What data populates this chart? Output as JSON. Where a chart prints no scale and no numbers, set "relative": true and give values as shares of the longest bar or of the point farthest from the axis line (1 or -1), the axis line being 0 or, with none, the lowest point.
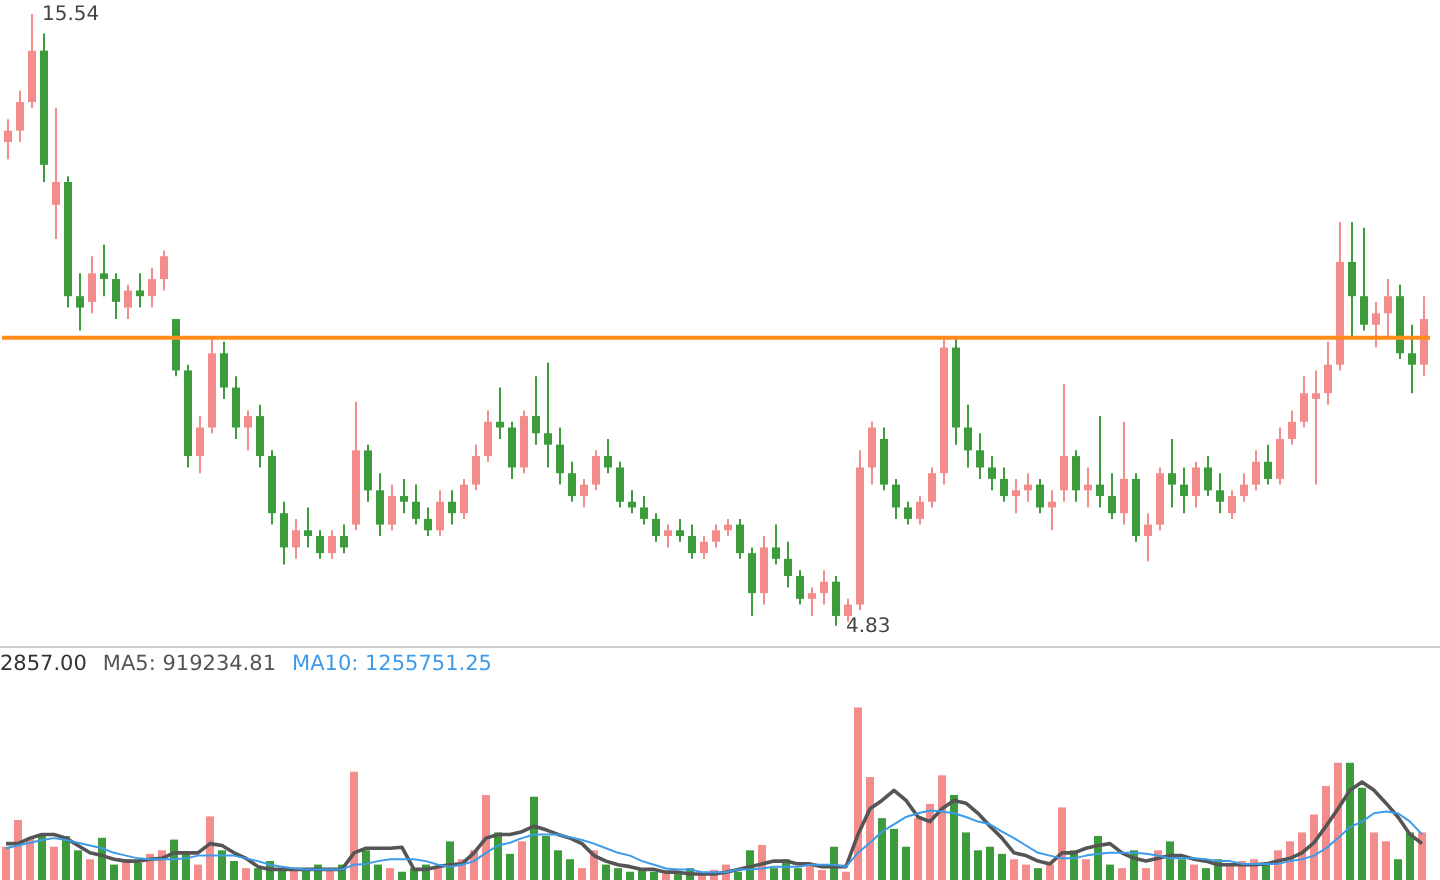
{
  "chart_data": [
    {
      "type": "candlestick",
      "categories": [
        null,
        null,
        null,
        null,
        null,
        null,
        null,
        null,
        null,
        null,
        null,
        null,
        null,
        null,
        null,
        null,
        null,
        null,
        null,
        null,
        null,
        null,
        null,
        null,
        null,
        null,
        null,
        null,
        null,
        null,
        null,
        null,
        null,
        null,
        null,
        null,
        null,
        null,
        null,
        null,
        null,
        null,
        null,
        null,
        null,
        null,
        null,
        null,
        null,
        null,
        null,
        null,
        null,
        null,
        null,
        null,
        null,
        null,
        null,
        null,
        null,
        null,
        null,
        null,
        null,
        null,
        null,
        null,
        null,
        null,
        null,
        null,
        null,
        null,
        null,
        null,
        null,
        null,
        null,
        null,
        null,
        null,
        null,
        null,
        null,
        null,
        null,
        null,
        null,
        null,
        null,
        null,
        null,
        null,
        null,
        null,
        null,
        null,
        null,
        null,
        null,
        null,
        null,
        null,
        null,
        null,
        null,
        null,
        null,
        null,
        null,
        null,
        null,
        null,
        null,
        null,
        null,
        null,
        null
      ],
      "ohlc": [
        [
          13.3,
          13.7,
          13.0,
          13.5
        ],
        [
          13.5,
          14.2,
          13.3,
          14.0
        ],
        [
          14.0,
          15.54,
          13.9,
          14.9
        ],
        [
          14.9,
          15.2,
          12.6,
          12.9
        ],
        [
          12.2,
          13.9,
          11.6,
          12.6
        ],
        [
          12.6,
          12.7,
          10.4,
          10.6
        ],
        [
          10.6,
          11.0,
          10.0,
          10.4
        ],
        [
          10.5,
          11.3,
          10.3,
          11.0
        ],
        [
          11.0,
          11.5,
          10.6,
          10.9
        ],
        [
          10.9,
          11.0,
          10.2,
          10.5
        ],
        [
          10.4,
          10.8,
          10.2,
          10.7
        ],
        [
          10.7,
          11.0,
          10.4,
          10.6
        ],
        [
          10.6,
          11.1,
          10.4,
          10.9
        ],
        [
          10.9,
          11.4,
          10.7,
          11.3
        ],
        [
          10.2,
          10.2,
          9.2,
          9.3
        ],
        [
          9.3,
          9.4,
          7.6,
          7.8
        ],
        [
          7.8,
          8.5,
          7.5,
          8.3
        ],
        [
          8.3,
          9.9,
          8.2,
          9.6
        ],
        [
          9.6,
          9.8,
          8.8,
          9.0
        ],
        [
          9.0,
          9.2,
          8.1,
          8.3
        ],
        [
          8.3,
          8.6,
          7.9,
          8.5
        ],
        [
          8.5,
          8.7,
          7.6,
          7.8
        ],
        [
          7.8,
          7.9,
          6.6,
          6.8
        ],
        [
          6.8,
          7.0,
          5.9,
          6.2
        ],
        [
          6.2,
          6.7,
          6.0,
          6.5
        ],
        [
          6.5,
          6.9,
          6.2,
          6.4
        ],
        [
          6.4,
          6.5,
          6.0,
          6.1
        ],
        [
          6.1,
          6.5,
          6.0,
          6.4
        ],
        [
          6.4,
          6.6,
          6.1,
          6.2
        ],
        [
          6.6,
          8.75,
          6.5,
          7.9
        ],
        [
          7.9,
          8.0,
          7.0,
          7.2
        ],
        [
          7.2,
          7.5,
          6.4,
          6.6
        ],
        [
          6.6,
          7.3,
          6.5,
          7.1
        ],
        [
          7.1,
          7.4,
          6.8,
          7.0
        ],
        [
          7.0,
          7.3,
          6.6,
          6.7
        ],
        [
          6.7,
          6.9,
          6.4,
          6.5
        ],
        [
          6.5,
          7.2,
          6.4,
          7.0
        ],
        [
          7.0,
          7.2,
          6.6,
          6.8
        ],
        [
          6.8,
          7.4,
          6.7,
          7.3
        ],
        [
          7.3,
          8.0,
          7.2,
          7.8
        ],
        [
          7.8,
          8.6,
          7.7,
          8.4
        ],
        [
          8.4,
          9.0,
          8.1,
          8.3
        ],
        [
          8.3,
          8.4,
          7.4,
          7.6
        ],
        [
          7.6,
          8.6,
          7.5,
          8.5
        ],
        [
          8.5,
          9.2,
          8.0,
          8.2
        ],
        [
          8.2,
          9.44,
          7.6,
          8.0
        ],
        [
          8.0,
          8.3,
          7.3,
          7.5
        ],
        [
          7.5,
          7.7,
          7.0,
          7.1
        ],
        [
          7.1,
          7.4,
          6.9,
          7.3
        ],
        [
          7.3,
          7.9,
          7.2,
          7.8
        ],
        [
          7.8,
          8.1,
          7.5,
          7.6
        ],
        [
          7.6,
          7.7,
          6.9,
          7.0
        ],
        [
          7.0,
          7.2,
          6.8,
          6.9
        ],
        [
          6.9,
          7.1,
          6.6,
          6.7
        ],
        [
          6.7,
          6.8,
          6.3,
          6.4
        ],
        [
          6.4,
          6.6,
          6.2,
          6.5
        ],
        [
          6.5,
          6.7,
          6.3,
          6.4
        ],
        [
          6.4,
          6.6,
          6.0,
          6.1
        ],
        [
          6.1,
          6.4,
          6.0,
          6.3
        ],
        [
          6.3,
          6.6,
          6.2,
          6.5
        ],
        [
          6.5,
          6.7,
          6.4,
          6.6
        ],
        [
          6.6,
          6.7,
          6.0,
          6.1
        ],
        [
          6.1,
          6.2,
          5.0,
          5.4
        ],
        [
          5.4,
          6.4,
          5.2,
          6.2
        ],
        [
          6.2,
          6.6,
          5.9,
          6.0
        ],
        [
          6.0,
          6.3,
          5.5,
          5.7
        ],
        [
          5.7,
          5.8,
          5.2,
          5.3
        ],
        [
          5.3,
          5.5,
          5.0,
          5.4
        ],
        [
          5.4,
          5.8,
          5.2,
          5.6
        ],
        [
          5.6,
          5.7,
          4.83,
          5.0
        ],
        [
          5.0,
          5.3,
          4.9,
          5.2
        ],
        [
          5.2,
          7.9,
          5.1,
          7.6
        ],
        [
          7.6,
          8.4,
          7.3,
          8.3
        ],
        [
          8.1,
          8.3,
          7.2,
          7.3
        ],
        [
          7.3,
          7.4,
          6.7,
          6.9
        ],
        [
          6.9,
          7.0,
          6.6,
          6.7
        ],
        [
          6.7,
          7.1,
          6.6,
          7.0
        ],
        [
          7.0,
          7.6,
          6.9,
          7.5
        ],
        [
          7.5,
          9.9,
          7.3,
          9.7
        ],
        [
          9.7,
          9.9,
          8.0,
          8.3
        ],
        [
          8.3,
          8.7,
          7.6,
          7.9
        ],
        [
          7.9,
          8.2,
          7.4,
          7.6
        ],
        [
          7.6,
          7.8,
          7.2,
          7.4
        ],
        [
          7.4,
          7.6,
          7.0,
          7.1
        ],
        [
          7.1,
          7.4,
          6.8,
          7.2
        ],
        [
          7.2,
          7.5,
          7.0,
          7.3
        ],
        [
          7.3,
          7.4,
          6.8,
          6.9
        ],
        [
          6.9,
          7.2,
          6.5,
          7.0
        ],
        [
          7.2,
          9.06,
          7.0,
          7.8
        ],
        [
          7.8,
          7.9,
          7.0,
          7.2
        ],
        [
          7.2,
          7.6,
          6.9,
          7.3
        ],
        [
          7.3,
          8.5,
          6.9,
          7.1
        ],
        [
          7.1,
          7.5,
          6.7,
          6.8
        ],
        [
          6.8,
          8.4,
          6.6,
          7.4
        ],
        [
          7.4,
          7.5,
          6.3,
          6.4
        ],
        [
          6.4,
          6.8,
          5.96,
          6.6
        ],
        [
          6.6,
          7.6,
          6.5,
          7.5
        ],
        [
          7.5,
          8.1,
          6.9,
          7.3
        ],
        [
          7.3,
          7.6,
          6.8,
          7.1
        ],
        [
          7.1,
          7.7,
          6.9,
          7.6
        ],
        [
          7.6,
          7.8,
          7.1,
          7.2
        ],
        [
          7.2,
          7.5,
          6.8,
          7.0
        ],
        [
          6.8,
          7.2,
          6.7,
          7.1
        ],
        [
          7.1,
          7.5,
          7.0,
          7.3
        ],
        [
          7.3,
          7.9,
          7.2,
          7.7
        ],
        [
          7.7,
          8.0,
          7.3,
          7.4
        ],
        [
          7.4,
          8.3,
          7.3,
          8.1
        ],
        [
          8.1,
          8.6,
          8.0,
          8.4
        ],
        [
          8.4,
          9.2,
          8.3,
          8.9
        ],
        [
          8.8,
          9.3,
          7.3,
          8.9
        ],
        [
          8.9,
          9.8,
          8.7,
          9.4
        ],
        [
          9.4,
          11.9,
          9.3,
          11.2
        ],
        [
          11.2,
          11.9,
          9.9,
          10.6
        ],
        [
          10.6,
          11.8,
          10.0,
          10.1
        ],
        [
          10.1,
          10.5,
          9.7,
          10.3
        ],
        [
          10.3,
          10.9,
          9.9,
          10.6
        ],
        [
          10.6,
          10.8,
          9.5,
          9.6
        ],
        [
          9.6,
          10.1,
          8.9,
          9.4
        ],
        [
          9.4,
          10.6,
          9.2,
          10.2
        ]
      ],
      "colors": [
        "#f58c8c",
        "#f58c8c",
        "#f58c8c",
        "#3c9c3c",
        "#f58c8c",
        "#3c9c3c",
        "#3c9c3c",
        "#f58c8c",
        "#3c9c3c",
        "#3c9c3c",
        "#f58c8c",
        "#3c9c3c",
        "#f58c8c",
        "#f58c8c",
        "#3c9c3c",
        "#3c9c3c",
        "#f58c8c",
        "#f58c8c",
        "#3c9c3c",
        "#3c9c3c",
        "#f58c8c",
        "#3c9c3c",
        "#3c9c3c",
        "#3c9c3c",
        "#f58c8c",
        "#3c9c3c",
        "#3c9c3c",
        "#f58c8c",
        "#3c9c3c",
        "#f58c8c",
        "#3c9c3c",
        "#3c9c3c",
        "#f58c8c",
        "#3c9c3c",
        "#3c9c3c",
        "#3c9c3c",
        "#f58c8c",
        "#3c9c3c",
        "#f58c8c",
        "#f58c8c",
        "#f58c8c",
        "#3c9c3c",
        "#3c9c3c",
        "#f58c8c",
        "#3c9c3c",
        "#3c9c3c",
        "#3c9c3c",
        "#3c9c3c",
        "#f58c8c",
        "#f58c8c",
        "#3c9c3c",
        "#3c9c3c",
        "#3c9c3c",
        "#3c9c3c",
        "#3c9c3c",
        "#f58c8c",
        "#3c9c3c",
        "#3c9c3c",
        "#f58c8c",
        "#f58c8c",
        "#f58c8c",
        "#3c9c3c",
        "#3c9c3c",
        "#f58c8c",
        "#3c9c3c",
        "#3c9c3c",
        "#3c9c3c",
        "#f58c8c",
        "#f58c8c",
        "#3c9c3c",
        "#f58c8c",
        "#f58c8c",
        "#f58c8c",
        "#3c9c3c",
        "#3c9c3c",
        "#3c9c3c",
        "#f58c8c",
        "#f58c8c",
        "#f58c8c",
        "#3c9c3c",
        "#3c9c3c",
        "#3c9c3c",
        "#3c9c3c",
        "#3c9c3c",
        "#f58c8c",
        "#f58c8c",
        "#3c9c3c",
        "#f58c8c",
        "#f58c8c",
        "#3c9c3c",
        "#f58c8c",
        "#3c9c3c",
        "#3c9c3c",
        "#f58c8c",
        "#3c9c3c",
        "#f58c8c",
        "#f58c8c",
        "#3c9c3c",
        "#3c9c3c",
        "#f58c8c",
        "#3c9c3c",
        "#3c9c3c",
        "#f58c8c",
        "#f58c8c",
        "#f58c8c",
        "#3c9c3c",
        "#f58c8c",
        "#f58c8c",
        "#f58c8c",
        "#f58c8c",
        "#f58c8c",
        "#f58c8c",
        "#3c9c3c",
        "#3c9c3c",
        "#f58c8c",
        "#f58c8c",
        "#3c9c3c",
        "#3c9c3c",
        "#f58c8c"
      ],
      "tick_labels": false,
      "ref_lines": [
        {
          "axis": "y",
          "value": 9.87,
          "color": "#ff8c1a"
        }
      ],
      "annotations": [
        "15.54",
        "4.83"
      ]
    },
    {
      "type": "bar",
      "relative": true,
      "tick_labels": false,
      "categories": [
        null,
        null,
        null,
        null,
        null,
        null,
        null,
        null,
        null,
        null,
        null,
        null,
        null,
        null,
        null,
        null,
        null,
        null,
        null,
        null,
        null,
        null,
        null,
        null,
        null,
        null,
        null,
        null,
        null,
        null,
        null,
        null,
        null,
        null,
        null,
        null,
        null,
        null,
        null,
        null,
        null,
        null,
        null,
        null,
        null,
        null,
        null,
        null,
        null,
        null,
        null,
        null,
        null,
        null,
        null,
        null,
        null,
        null,
        null,
        null,
        null,
        null,
        null,
        null,
        null,
        null,
        null,
        null,
        null,
        null,
        null,
        null,
        null,
        null,
        null,
        null,
        null,
        null,
        null,
        null,
        null,
        null,
        null,
        null,
        null,
        null,
        null,
        null,
        null,
        null,
        null,
        null,
        null,
        null,
        null,
        null,
        null,
        null,
        null,
        null,
        null,
        null,
        null,
        null,
        null,
        null,
        null,
        null,
        null,
        null,
        null,
        null,
        null,
        null,
        null,
        null,
        null,
        null,
        null
      ],
      "annotations": [
        "2857.00"
      ],
      "colors": [
        "#f58c8c",
        "#f58c8c",
        "#f58c8c",
        "#3c9c3c",
        "#f58c8c",
        "#3c9c3c",
        "#3c9c3c",
        "#f58c8c",
        "#3c9c3c",
        "#3c9c3c",
        "#f58c8c",
        "#3c9c3c",
        "#f58c8c",
        "#f58c8c",
        "#3c9c3c",
        "#3c9c3c",
        "#f58c8c",
        "#f58c8c",
        "#3c9c3c",
        "#3c9c3c",
        "#f58c8c",
        "#3c9c3c",
        "#3c9c3c",
        "#3c9c3c",
        "#f58c8c",
        "#3c9c3c",
        "#3c9c3c",
        "#f58c8c",
        "#3c9c3c",
        "#f58c8c",
        "#3c9c3c",
        "#3c9c3c",
        "#f58c8c",
        "#3c9c3c",
        "#3c9c3c",
        "#3c9c3c",
        "#f58c8c",
        "#3c9c3c",
        "#f58c8c",
        "#f58c8c",
        "#f58c8c",
        "#3c9c3c",
        "#3c9c3c",
        "#f58c8c",
        "#3c9c3c",
        "#3c9c3c",
        "#3c9c3c",
        "#3c9c3c",
        "#f58c8c",
        "#f58c8c",
        "#3c9c3c",
        "#3c9c3c",
        "#3c9c3c",
        "#3c9c3c",
        "#3c9c3c",
        "#f58c8c",
        "#3c9c3c",
        "#3c9c3c",
        "#f58c8c",
        "#f58c8c",
        "#f58c8c",
        "#3c9c3c",
        "#3c9c3c",
        "#f58c8c",
        "#3c9c3c",
        "#3c9c3c",
        "#3c9c3c",
        "#f58c8c",
        "#f58c8c",
        "#3c9c3c",
        "#f58c8c",
        "#f58c8c",
        "#f58c8c",
        "#3c9c3c",
        "#3c9c3c",
        "#3c9c3c",
        "#f58c8c",
        "#f58c8c",
        "#f58c8c",
        "#3c9c3c",
        "#3c9c3c",
        "#3c9c3c",
        "#3c9c3c",
        "#3c9c3c",
        "#f58c8c",
        "#f58c8c",
        "#3c9c3c",
        "#f58c8c",
        "#f58c8c",
        "#3c9c3c",
        "#f58c8c",
        "#3c9c3c",
        "#3c9c3c",
        "#f58c8c",
        "#3c9c3c",
        "#f58c8c",
        "#f58c8c",
        "#3c9c3c",
        "#3c9c3c",
        "#f58c8c",
        "#3c9c3c",
        "#3c9c3c",
        "#f58c8c",
        "#f58c8c",
        "#f58c8c",
        "#3c9c3c",
        "#f58c8c",
        "#f58c8c",
        "#f58c8c",
        "#f58c8c",
        "#f58c8c",
        "#f58c8c",
        "#3c9c3c",
        "#3c9c3c",
        "#f58c8c",
        "#f58c8c",
        "#3c9c3c",
        "#3c9c3c",
        "#f58c8c"
      ],
      "values": [
        0.22,
        0.37,
        0.27,
        0.29,
        0.22,
        0.28,
        0.2,
        0.15,
        0.27,
        0.12,
        0.15,
        0.13,
        0.18,
        0.2,
        0.26,
        0.18,
        0.12,
        0.39,
        0.2,
        0.14,
        0.1,
        0.1,
        0.14,
        0.1,
        0.09,
        0.1,
        0.12,
        0.1,
        0.12,
        0.64,
        0.2,
        0.12,
        0.1,
        0.08,
        0.1,
        0.12,
        0.1,
        0.25,
        0.15,
        0.2,
        0.51,
        0.3,
        0.18,
        0.25,
        0.5,
        0.28,
        0.2,
        0.15,
        0.1,
        0.2,
        0.12,
        0.1,
        0.08,
        0.1,
        0.08,
        0.07,
        0.08,
        0.1,
        0.07,
        0.09,
        0.12,
        0.08,
        0.2,
        0.23,
        0.1,
        0.15,
        0.1,
        0.12,
        0.09,
        0.22,
        0.08,
        1.0,
        0.61,
        0.38,
        0.32,
        0.22,
        0.38,
        0.46,
        0.62,
        0.51,
        0.3,
        0.2,
        0.22,
        0.18,
        0.15,
        0.12,
        0.1,
        0.12,
        0.44,
        0.2,
        0.15,
        0.28,
        0.12,
        0.1,
        0.2,
        0.1,
        0.2,
        0.25,
        0.15,
        0.12,
        0.1,
        0.15,
        0.12,
        0.14,
        0.15,
        0.12,
        0.2,
        0.25,
        0.3,
        0.4,
        0.56,
        0.69,
        0.69,
        0.55,
        0.3,
        0.25,
        0.15,
        0.3,
        0.3
      ]
    },
    {
      "type": "line",
      "relative": true,
      "tick_labels": false,
      "categories": [
        null,
        null,
        null,
        null,
        null,
        null,
        null,
        null,
        null,
        null,
        null,
        null,
        null,
        null,
        null,
        null,
        null,
        null,
        null,
        null,
        null,
        null,
        null,
        null,
        null,
        null,
        null,
        null,
        null,
        null,
        null,
        null,
        null,
        null,
        null,
        null,
        null,
        null,
        null,
        null,
        null,
        null,
        null,
        null,
        null,
        null,
        null,
        null,
        null,
        null,
        null,
        null,
        null,
        null,
        null,
        null,
        null,
        null,
        null,
        null,
        null,
        null,
        null,
        null,
        null,
        null,
        null,
        null,
        null,
        null,
        null,
        null,
        null,
        null,
        null,
        null,
        null,
        null,
        null,
        null,
        null,
        null,
        null,
        null,
        null,
        null,
        null,
        null,
        null,
        null,
        null,
        null,
        null,
        null,
        null,
        null,
        null,
        null,
        null,
        null,
        null,
        null,
        null,
        null,
        null,
        null,
        null,
        null,
        null,
        null,
        null,
        null,
        null,
        null,
        null,
        null,
        null,
        null,
        null
      ],
      "annotations": [
        "MA5: 919234.81",
        "MA10: 1255751.25"
      ],
      "series": [
        {
          "color": "#555555",
          "values": [
            0.33,
            0.33,
            0.39,
            0.43,
            0.43,
            0.39,
            0.31,
            0.23,
            0.2,
            0.16,
            0.14,
            0.14,
            0.16,
            0.17,
            0.23,
            0.23,
            0.23,
            0.33,
            0.31,
            0.23,
            0.17,
            0.08,
            0.05,
            0.05,
            0.05,
            0.05,
            0.05,
            0.05,
            0.05,
            0.23,
            0.28,
            0.28,
            0.28,
            0.29,
            0.05,
            0.05,
            0.08,
            0.1,
            0.11,
            0.23,
            0.39,
            0.43,
            0.43,
            0.46,
            0.52,
            0.48,
            0.43,
            0.39,
            0.33,
            0.2,
            0.14,
            0.1,
            0.08,
            0.05,
            0.05,
            0.02,
            0.02,
            0,
            0,
            0,
            0.02,
            0.05,
            0.08,
            0.11,
            0.14,
            0.14,
            0.11,
            0.11,
            0.08,
            0.08,
            0.08,
            0.43,
            0.71,
            0.8,
            0.91,
            0.8,
            0.62,
            0.57,
            0.71,
            0.8,
            0.77,
            0.66,
            0.52,
            0.39,
            0.23,
            0.2,
            0.14,
            0.11,
            0.23,
            0.23,
            0.28,
            0.31,
            0.33,
            0.23,
            0.17,
            0.14,
            0.17,
            0.2,
            0.2,
            0.16,
            0.14,
            0.1,
            0.1,
            0.1,
            0.1,
            0.11,
            0.14,
            0.17,
            0.23,
            0.34,
            0.52,
            0.71,
            0.91,
            1,
            0.91,
            0.77,
            0.62,
            0.43,
            0.33
          ]
        },
        {
          "color": "#3d9be9",
          "values": [
            0.28,
            0.31,
            0.34,
            0.37,
            0.39,
            0.37,
            0.34,
            0.31,
            0.28,
            0.23,
            0.2,
            0.17,
            0.16,
            0.16,
            0.16,
            0.17,
            0.2,
            0.2,
            0.2,
            0.2,
            0.17,
            0.14,
            0.1,
            0.08,
            0.06,
            0.05,
            0.05,
            0.05,
            0.05,
            0.1,
            0.11,
            0.14,
            0.16,
            0.16,
            0.16,
            0.14,
            0.1,
            0.08,
            0.1,
            0.14,
            0.23,
            0.31,
            0.34,
            0.39,
            0.43,
            0.43,
            0.43,
            0.4,
            0.37,
            0.33,
            0.28,
            0.23,
            0.2,
            0.14,
            0.1,
            0.06,
            0.05,
            0.05,
            0.02,
            0.02,
            0.02,
            0.05,
            0.05,
            0.06,
            0.08,
            0.08,
            0.08,
            0.1,
            0.1,
            0.1,
            0.08,
            0.23,
            0.34,
            0.46,
            0.54,
            0.62,
            0.66,
            0.69,
            0.68,
            0.66,
            0.62,
            0.57,
            0.54,
            0.46,
            0.39,
            0.31,
            0.23,
            0.2,
            0.17,
            0.17,
            0.2,
            0.22,
            0.23,
            0.23,
            0.23,
            0.22,
            0.2,
            0.17,
            0.17,
            0.17,
            0.16,
            0.14,
            0.14,
            0.11,
            0.11,
            0.11,
            0.11,
            0.14,
            0.16,
            0.2,
            0.28,
            0.39,
            0.51,
            0.57,
            0.66,
            0.68,
            0.66,
            0.57,
            0.43
          ]
        }
      ]
    }
  ]
}
